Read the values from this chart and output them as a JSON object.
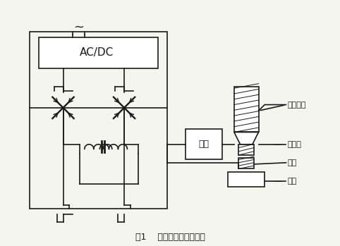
{
  "title": "图1    超声波塑料焊机结构",
  "bg_color": "#f5f5f0",
  "line_color": "#1a1a1a",
  "label_shengxue": "声学系统",
  "label_jingyali": "静压力",
  "label_hanjian": "焊件",
  "label_zuozuo": "砧座",
  "label_pipei": "匹配",
  "label_acdc": "AC/DC",
  "watermark_color": "#cccccc"
}
